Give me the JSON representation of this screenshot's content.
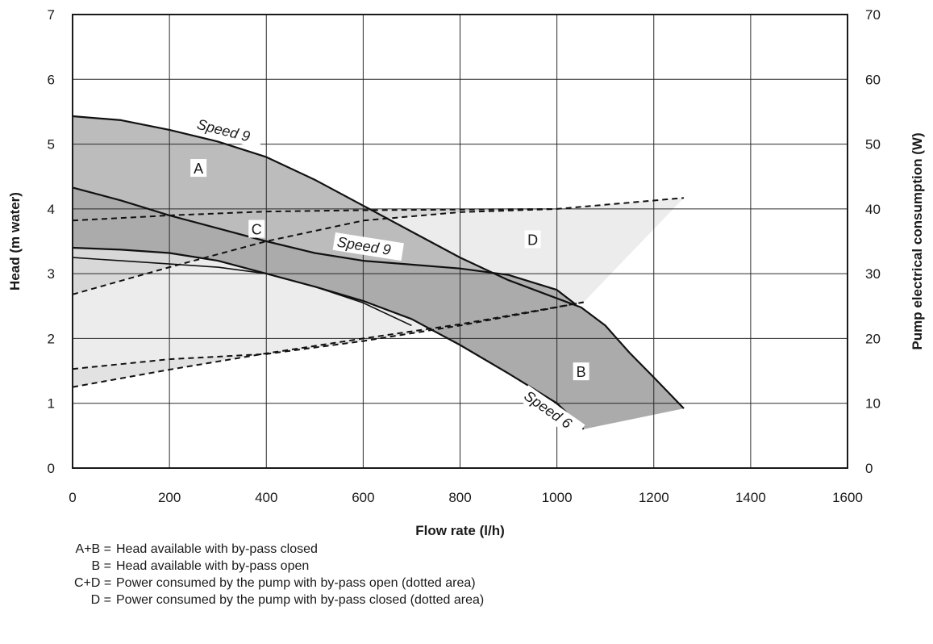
{
  "chart_data": {
    "type": "area",
    "xlabel": "Flow rate (l/h)",
    "ylabel": "Head (m water)",
    "y2label": "Pump electrical consumption (W)",
    "xlim": [
      0,
      1600
    ],
    "ylim": [
      0,
      7
    ],
    "y2lim": [
      0,
      70
    ],
    "x_ticks": [
      "0",
      "200",
      "400",
      "600",
      "800",
      "1000",
      "1200",
      "1400",
      "1600"
    ],
    "y_ticks": [
      "0",
      "1",
      "2",
      "3",
      "4",
      "5",
      "6",
      "7"
    ],
    "y2_ticks": [
      "0",
      "10",
      "20",
      "30",
      "40",
      "50",
      "60",
      "70"
    ],
    "grid": true,
    "head_curves": [
      {
        "label": "Speed 9",
        "points": [
          [
            0,
            5.43
          ],
          [
            100,
            5.37
          ],
          [
            200,
            5.22
          ],
          [
            300,
            5.04
          ],
          [
            400,
            4.8
          ],
          [
            500,
            4.45
          ],
          [
            600,
            4.05
          ],
          [
            700,
            3.65
          ],
          [
            800,
            3.25
          ],
          [
            900,
            2.9
          ],
          [
            1000,
            2.62
          ],
          [
            1050,
            2.48
          ],
          [
            1100,
            2.2
          ],
          [
            1150,
            1.78
          ],
          [
            1200,
            1.4
          ],
          [
            1262,
            0.92
          ]
        ]
      },
      {
        "label": "Speed 9",
        "points": [
          [
            0,
            4.33
          ],
          [
            100,
            4.13
          ],
          [
            200,
            3.9
          ],
          [
            300,
            3.7
          ],
          [
            400,
            3.5
          ],
          [
            500,
            3.32
          ],
          [
            600,
            3.2
          ],
          [
            700,
            3.14
          ],
          [
            800,
            3.08
          ],
          [
            900,
            2.98
          ],
          [
            1000,
            2.75
          ],
          [
            1040,
            2.52
          ]
        ]
      },
      {
        "label": "Speed 6",
        "points": [
          [
            0,
            3.4
          ],
          [
            100,
            3.37
          ],
          [
            200,
            3.32
          ],
          [
            300,
            3.2
          ],
          [
            400,
            3.0
          ],
          [
            500,
            2.8
          ],
          [
            600,
            2.58
          ],
          [
            700,
            2.3
          ],
          [
            800,
            1.9
          ],
          [
            900,
            1.46
          ],
          [
            1000,
            1.0
          ],
          [
            1055,
            0.6
          ]
        ]
      },
      {
        "label": "",
        "points": [
          [
            0,
            3.25
          ],
          [
            100,
            3.2
          ],
          [
            200,
            3.15
          ],
          [
            300,
            3.1
          ],
          [
            400,
            3.0
          ],
          [
            500,
            2.8
          ],
          [
            600,
            2.55
          ],
          [
            700,
            2.2
          ]
        ]
      }
    ],
    "power_curves": [
      {
        "label": "",
        "points": [
          [
            0,
            38.2
          ],
          [
            200,
            39.0
          ],
          [
            400,
            39.6
          ],
          [
            600,
            39.8
          ],
          [
            800,
            39.9
          ],
          [
            1000,
            40.0
          ],
          [
            1262,
            41.7
          ]
        ]
      },
      {
        "label": "",
        "points": [
          [
            0,
            26.8
          ],
          [
            200,
            31.0
          ],
          [
            400,
            35.0
          ],
          [
            600,
            38.2
          ],
          [
            800,
            39.5
          ],
          [
            1000,
            40.0
          ]
        ]
      },
      {
        "label": "",
        "points": [
          [
            0,
            15.3
          ],
          [
            200,
            16.8
          ],
          [
            400,
            17.6
          ],
          [
            600,
            19.6
          ],
          [
            800,
            22.0
          ],
          [
            1055,
            25.6
          ]
        ]
      },
      {
        "label": "",
        "points": [
          [
            0,
            12.5
          ],
          [
            200,
            15.2
          ],
          [
            400,
            17.7
          ],
          [
            600,
            20.0
          ],
          [
            800,
            22.2
          ],
          [
            1055,
            25.6
          ]
        ]
      }
    ],
    "regions": [
      {
        "label": "A",
        "x": 260,
        "y": 4.62
      },
      {
        "label": "B",
        "x": 1050,
        "y": 1.48
      },
      {
        "label": "C",
        "x": 380,
        "y": 3.68
      },
      {
        "label": "D",
        "x": 950,
        "y": 3.52
      }
    ],
    "curve_labels": [
      {
        "text": "Speed 9",
        "x": 255,
        "y": 5.24,
        "angle": 14
      },
      {
        "text": "Speed 9",
        "x": 545,
        "y": 3.42,
        "angle": 9
      },
      {
        "text": "Speed 6",
        "x": 930,
        "y": 1.08,
        "angle": 35
      }
    ],
    "legend": [
      {
        "key": "A+B =",
        "text": "Head available with by-pass closed"
      },
      {
        "key": "B =",
        "text": "Head available with by-pass open"
      },
      {
        "key": "C+D =",
        "text": "Power consumed by the pump with by-pass open (dotted area)"
      },
      {
        "key": "D =",
        "text": "Power consumed by the pump with by-pass closed (dotted area)"
      }
    ]
  }
}
